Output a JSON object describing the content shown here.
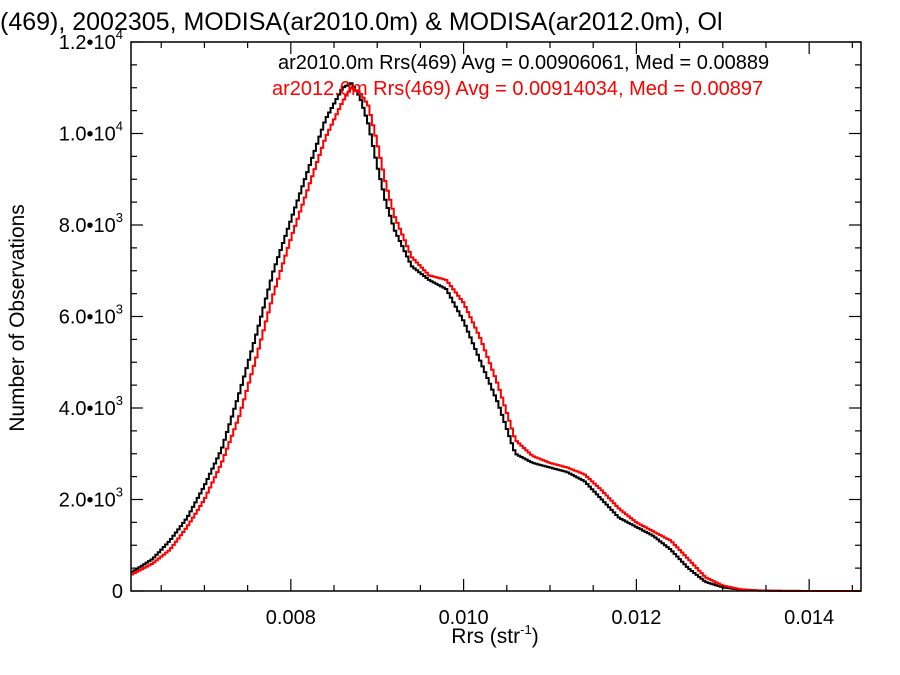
{
  "chart_data": {
    "type": "line",
    "style": "step-histogram",
    "title": "(469), 2002305, MODISA(ar2010.0m) & MODISA(ar2012.0m), Ol",
    "xlabel": "Rrs (str",
    "xlabel_sup": "-1",
    "xlabel_close": ")",
    "ylabel": "Number of Observations",
    "xlim": [
      0.00615,
      0.0146
    ],
    "ylim": [
      0,
      12000
    ],
    "grid": false,
    "x_ticks": [
      {
        "value": 0.008,
        "label": "0.008"
      },
      {
        "value": 0.01,
        "label": "0.010"
      },
      {
        "value": 0.012,
        "label": "0.012"
      },
      {
        "value": 0.014,
        "label": "0.014"
      }
    ],
    "y_ticks": [
      {
        "value": 0,
        "mant": "0",
        "exp": ""
      },
      {
        "value": 2000,
        "mant": "2.0•10",
        "exp": "3"
      },
      {
        "value": 4000,
        "mant": "4.0•10",
        "exp": "3"
      },
      {
        "value": 6000,
        "mant": "6.0•10",
        "exp": "3"
      },
      {
        "value": 8000,
        "mant": "8.0•10",
        "exp": "3"
      },
      {
        "value": 10000,
        "mant": "1.0•10",
        "exp": "4"
      },
      {
        "value": 12000,
        "mant": "1.2•10",
        "exp": "4"
      }
    ],
    "legend": [
      {
        "text": "ar2010.0m Rrs(469) Avg = 0.00906061, Med = 0.00889",
        "color": "#000000"
      },
      {
        "text": "ar2012.0m Rrs(469) Avg = 0.00914034, Med = 0.00897",
        "color": "#ff0000"
      }
    ],
    "series": [
      {
        "name": "ar2010.0m",
        "color": "#000000",
        "x": [
          0.00615,
          0.0064,
          0.0066,
          0.0068,
          0.007,
          0.0072,
          0.0074,
          0.0076,
          0.0078,
          0.008,
          0.0082,
          0.0084,
          0.0086,
          0.0087,
          0.0088,
          0.0089,
          0.009,
          0.0091,
          0.0092,
          0.0094,
          0.0096,
          0.0098,
          0.01,
          0.0102,
          0.0104,
          0.0106,
          0.0108,
          0.011,
          0.0112,
          0.0114,
          0.0116,
          0.0118,
          0.012,
          0.0122,
          0.0124,
          0.0126,
          0.0128,
          0.013,
          0.0132,
          0.0134,
          0.0136,
          0.014,
          0.0146
        ],
        "y": [
          400,
          700,
          1100,
          1600,
          2300,
          3100,
          4300,
          5600,
          7000,
          8100,
          9200,
          10300,
          11000,
          11100,
          10800,
          10200,
          9300,
          8500,
          7900,
          7100,
          6800,
          6600,
          5900,
          5000,
          4100,
          3000,
          2800,
          2700,
          2600,
          2400,
          2000,
          1600,
          1400,
          1200,
          900,
          500,
          200,
          80,
          30,
          10,
          5,
          0,
          0
        ]
      },
      {
        "name": "ar2012.0m",
        "color": "#ff0000",
        "x": [
          0.00615,
          0.0064,
          0.0066,
          0.0068,
          0.007,
          0.0072,
          0.0074,
          0.0076,
          0.0078,
          0.008,
          0.0082,
          0.0084,
          0.0086,
          0.0087,
          0.0088,
          0.0089,
          0.009,
          0.0091,
          0.0092,
          0.0094,
          0.0096,
          0.0098,
          0.01,
          0.0102,
          0.0104,
          0.0106,
          0.0108,
          0.011,
          0.0112,
          0.0114,
          0.0116,
          0.0118,
          0.012,
          0.0122,
          0.0124,
          0.0126,
          0.0128,
          0.013,
          0.0132,
          0.0134,
          0.0136,
          0.014,
          0.0146
        ],
        "y": [
          350,
          600,
          900,
          1400,
          2000,
          2800,
          3800,
          5100,
          6500,
          7700,
          8800,
          9900,
          10700,
          11000,
          10900,
          10600,
          9800,
          8900,
          8200,
          7300,
          6900,
          6800,
          6300,
          5500,
          4500,
          3300,
          2950,
          2800,
          2700,
          2550,
          2200,
          1800,
          1500,
          1300,
          1100,
          700,
          300,
          120,
          40,
          15,
          5,
          0,
          0
        ]
      }
    ]
  }
}
